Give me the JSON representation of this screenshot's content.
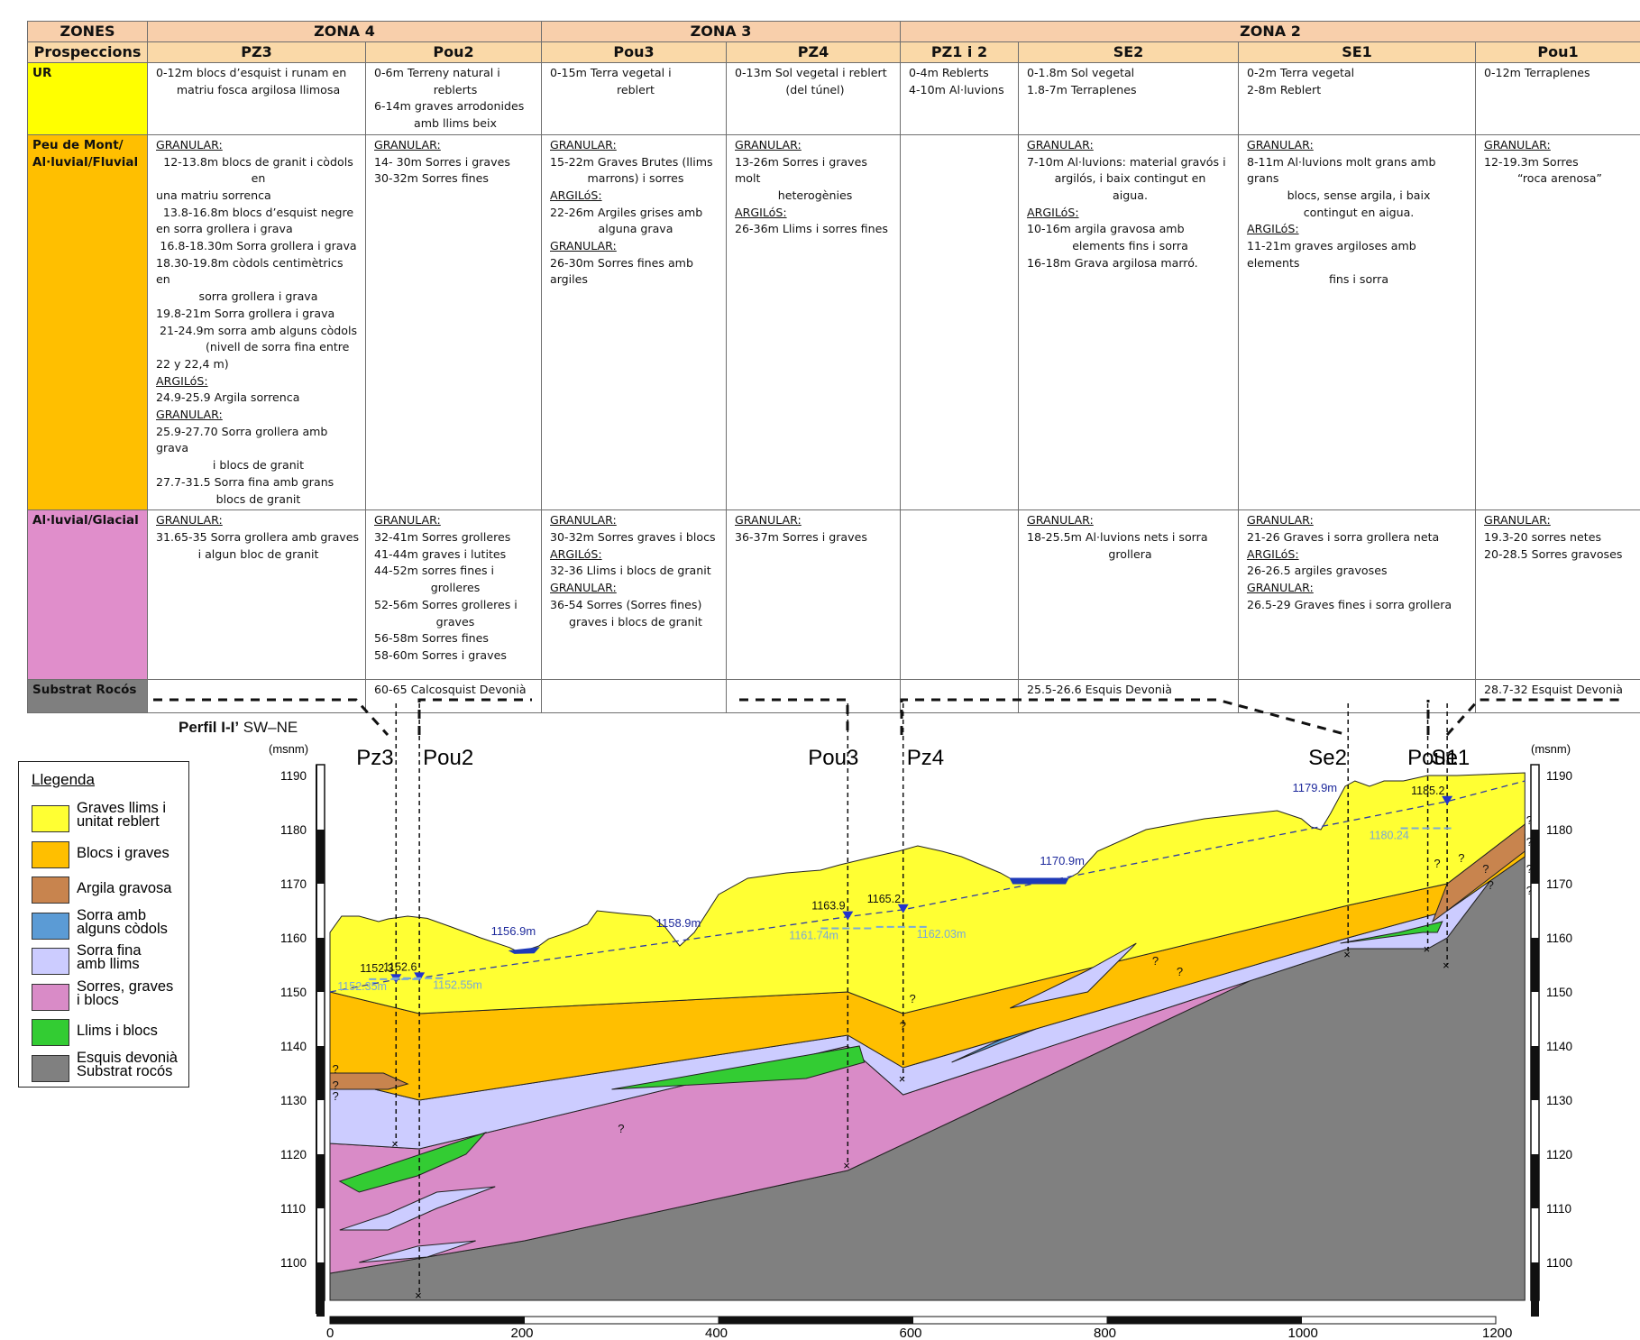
{
  "table": {
    "zones_label": "ZONES",
    "zona4": "ZONA 4",
    "zona3": "ZONA 3",
    "zona2": "ZONA 2",
    "prosp_label": "Prospeccions",
    "prospeccions": [
      "PZ3",
      "Pou2",
      "Pou3",
      "PZ4",
      "PZ1 i 2",
      "SE2",
      "SE1",
      "Pou1"
    ],
    "rows": {
      "ur": {
        "label": "UR"
      },
      "peu": {
        "label1": "Peu de Mont/",
        "label2": "Al·luvial/Fluvial"
      },
      "glac": {
        "label": "Al·luvial/Glacial"
      },
      "subs": {
        "label": "Substrat Rocós"
      }
    },
    "cells": {
      "ur_pz3": [
        "0-12m blocs d’esquist i runam en",
        "matriu fosca argilosa llimosa"
      ],
      "ur_pou2": [
        "0-6m Terreny natural i",
        "reblerts",
        "6-14m graves arrodonides",
        "amb llims beix"
      ],
      "ur_pou3": [
        "0-15m Terra vegetal i",
        "reblert"
      ],
      "ur_pz4": [
        "0-13m Sol vegetal i reblert",
        "(del túnel)"
      ],
      "ur_pz12": [
        "0-4m Reblerts",
        "4-10m Al·luvions"
      ],
      "ur_se2": [
        "0-1.8m Sol vegetal",
        "1.8-7m Terraplenes"
      ],
      "ur_se1": [
        "0-2m Terra vegetal",
        "2-8m Reblert"
      ],
      "ur_pou1": [
        "0-12m Terraplenes"
      ],
      "peu_pz3": [
        "GRANULAR:",
        "12-13.8m blocs de granit i còdols en",
        "una matriu sorrenca",
        "13.8-16.8m blocs d’esquist negre",
        "en sorra grollera i grava",
        "16.8-18.30m Sorra grollera i grava",
        "18.30-19.8m còdols centimètrics en",
        "sorra grollera i grava",
        "19.8-21m  Sorra grollera i grava",
        "21-24.9m sorra amb alguns còdols",
        "(nivell de sorra fina entre",
        "22 y 22,4 m)",
        "ARGILóS:",
        "24.9-25.9 Argila sorrenca",
        "GRANULAR:",
        "25.9-27.70 Sorra grollera amb grava",
        "i blocs de granit",
        "27.7-31.5 Sorra fina amb grans",
        "blocs de granit"
      ],
      "peu_pou2": [
        "GRANULAR:",
        "14- 30m Sorres i graves",
        "30-32m Sorres fines"
      ],
      "peu_pou3": [
        "GRANULAR:",
        "15-22m Graves Brutes (llims",
        "marrons) i sorres",
        "ARGILóS:",
        "22-26m Argiles grises amb",
        "alguna grava",
        "GRANULAR:",
        "26-30m Sorres fines amb",
        "argiles"
      ],
      "peu_pz4": [
        "GRANULAR:",
        "13-26m Sorres i graves molt",
        "heterogènies",
        "ARGILóS:",
        "26-36m Llims i sorres fines"
      ],
      "peu_se2": [
        "GRANULAR:",
        "7-10m Al·luvions: material gravós i",
        "argilós, i baix contingut en",
        "aigua.",
        "ARGILóS:",
        "10-16m argila gravosa amb",
        "elements fins i sorra",
        "16-18m Grava argilosa marró."
      ],
      "peu_se1": [
        "GRANULAR:",
        "8-11m Al·luvions molt grans amb grans",
        "blocs, sense argila, i baix",
        "contingut en aigua.",
        "ARGILóS:",
        "11-21m graves argiloses amb elements",
        "fins i sorra"
      ],
      "peu_pou1": [
        "GRANULAR:",
        "12-19.3m Sorres",
        "“roca arenosa”"
      ],
      "glac_pz3": [
        "GRANULAR:",
        "31.65-35 Sorra grollera amb graves",
        "i algun bloc de granit"
      ],
      "glac_pou2": [
        "GRANULAR:",
        "32-41m Sorres grolleres",
        "41-44m graves i lutites",
        "44-52m sorres fines i",
        "grolleres",
        "52-56m Sorres grolleres i",
        "graves",
        "56-58m Sorres fines",
        "58-60m Sorres i graves"
      ],
      "glac_pou3": [
        "GRANULAR:",
        "30-32m Sorres graves i blocs",
        "ARGILóS:",
        "32-36 Llims i blocs de granit",
        "GRANULAR:",
        "36-54 Sorres (Sorres fines)",
        "graves i blocs de granit"
      ],
      "glac_pz4": [
        "GRANULAR:",
        "36-37m Sorres i graves"
      ],
      "glac_se2": [
        "GRANULAR:",
        "18-25.5m Al·luvions nets i sorra",
        "grollera"
      ],
      "glac_se1": [
        "GRANULAR:",
        "21-26 Graves i sorra grollera neta",
        "ARGILóS:",
        "26-26.5 argiles gravoses",
        "GRANULAR:",
        "26.5-29 Graves fines i sorra grollera"
      ],
      "glac_pou1": [
        "GRANULAR:",
        "19.3-20 sorres netes",
        "20-28.5 Sorres gravoses"
      ],
      "subs_pou2": [
        "60-65 Calcosquist Devonià"
      ],
      "subs_se2": [
        "25.5-26.6 Esquis Devonià"
      ],
      "subs_pou1": [
        "28.7-32 Esquist Devonià"
      ]
    }
  },
  "profile": {
    "title_bold": "Perfil I-I’",
    "title_rest": " SW–NE",
    "units": "(msnm)",
    "wells": [
      {
        "name": "Pz3",
        "x": 68,
        "bottom": 1122
      },
      {
        "name": "Pou2",
        "x": 92,
        "bottom": 1094
      },
      {
        "name": "Pou3",
        "x": 533,
        "bottom": 1118
      },
      {
        "name": "Pz4",
        "x": 590,
        "bottom": 1134
      },
      {
        "name": "Se2",
        "x": 1048,
        "bottom": 1157
      },
      {
        "name": "Se1",
        "x": 1130,
        "bottom": 1158
      },
      {
        "name": "Pou1",
        "x": 1150,
        "bottom": 1155
      }
    ],
    "levels_dark": [
      {
        "text": "1152.3",
        "x": 68,
        "y": 1152.3
      },
      {
        "text": "1152.6",
        "x": 92,
        "y": 1152.6
      },
      {
        "text": "1163.9",
        "x": 533,
        "y": 1163.9
      },
      {
        "text": "1165.2",
        "x": 590,
        "y": 1165.2
      },
      {
        "text": "1185.2",
        "x": 1150,
        "y": 1185.2
      }
    ],
    "levels_light": [
      {
        "text": "1152.35m",
        "x": 68,
        "y": 1152.35
      },
      {
        "text": "1152.55m",
        "x": 92,
        "y": 1152.55
      },
      {
        "text": "1161.74m",
        "x": 533,
        "y": 1161.74
      },
      {
        "text": "1162.03m",
        "x": 590,
        "y": 1162.03
      },
      {
        "text": "1180.24",
        "x": 1130,
        "y": 1180.24
      }
    ],
    "surface_levels": [
      "1156.9m",
      "1158.9m",
      "1170.9m",
      "1179.9m"
    ],
    "question": "?",
    "x_ticks": [
      0,
      200,
      400,
      600,
      800,
      1000,
      1200
    ],
    "y_ticks": [
      1190,
      1180,
      1170,
      1160,
      1150,
      1140,
      1130,
      1120,
      1110,
      1100
    ],
    "x_range": [
      0,
      1230
    ],
    "y_range": [
      1093,
      1192
    ]
  },
  "legend": {
    "title": "Llegenda",
    "items": [
      {
        "label": "Graves llims i\nunitat reblert",
        "color": "#ffff33"
      },
      {
        "label": "Blocs i graves",
        "color": "#ffbf00"
      },
      {
        "label": "Argila gravosa",
        "color": "#c8844e"
      },
      {
        "label": "Sorra amb\nalguns còdols",
        "color": "#5b9bd5"
      },
      {
        "label": "Sorra fina\namb llims",
        "color": "#ccccff"
      },
      {
        "label": "Sorres, graves\ni blocs",
        "color": "#d98bc7"
      },
      {
        "label": "Llims i blocs",
        "color": "#33cc33"
      },
      {
        "label": "Esquis devonià\nSubstrat rocós",
        "color": "#808080"
      }
    ]
  }
}
